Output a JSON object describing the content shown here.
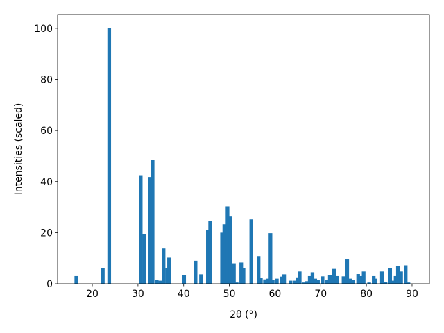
{
  "chart_data": {
    "type": "bar",
    "xlabel": "2θ (°)",
    "ylabel": "Intensities (scaled)",
    "color": "#1f77b4",
    "x": [
      16.5,
      22.3,
      23.7,
      30.6,
      31.4,
      32.6,
      33.2,
      34.1,
      34.9,
      35.6,
      36.4,
      36.8,
      40.1,
      42.6,
      43.8,
      45.3,
      45.8,
      48.4,
      48.9,
      49.6,
      50.2,
      51.0,
      51.6,
      52.6,
      53.1,
      54.8,
      56.4,
      56.9,
      57.8,
      58.4,
      59.0,
      59.5,
      60.4,
      61.4,
      62.0,
      63.4,
      64.4,
      65.0,
      65.4,
      66.4,
      67.0,
      67.6,
      68.2,
      68.8,
      69.4,
      70.4,
      71.4,
      72.0,
      72.9,
      73.6,
      75.0,
      75.8,
      76.4,
      77.0,
      78.2,
      78.8,
      79.4,
      80.6,
      81.6,
      82.0,
      83.4,
      84.2,
      85.2,
      85.8,
      86.4,
      86.9,
      87.6,
      88.6,
      89.2
    ],
    "values": [
      3,
      6,
      100,
      42.5,
      19.5,
      41.8,
      48.5,
      1.5,
      1.2,
      13.8,
      6,
      10.2,
      3.3,
      9,
      3.7,
      21,
      24.6,
      20,
      23.3,
      30.3,
      26.3,
      8,
      0.5,
      8.3,
      6,
      25.2,
      10.8,
      2.3,
      1.7,
      2,
      19.8,
      1.5,
      2,
      2.8,
      3.7,
      1.2,
      1.2,
      2.5,
      4.8,
      0.5,
      1,
      3,
      4.5,
      2,
      1.5,
      2.9,
      1.5,
      3.5,
      5.8,
      3,
      2.9,
      9.5,
      2,
      1.5,
      3.8,
      3,
      4.8,
      0.5,
      3,
      2,
      4.8,
      0.8,
      6,
      1.2,
      3,
      6.8,
      4.8,
      7.2,
      0.5
    ],
    "xlim": [
      12.4,
      93.8
    ],
    "ylim": [
      0,
      105.4
    ],
    "xticks": [
      20,
      30,
      40,
      50,
      60,
      70,
      80,
      90
    ],
    "yticks": [
      0,
      20,
      40,
      60,
      80,
      100
    ]
  }
}
